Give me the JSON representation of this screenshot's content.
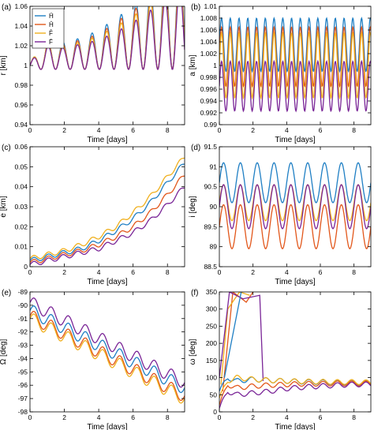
{
  "colors": {
    "H_bar": "#1f7fc4",
    "H_hat": "#e2571b",
    "F_hat": "#f0b01e",
    "F_bar": "#7a2597",
    "axis": "#000000"
  },
  "chart_data": [
    {
      "panel": "(a)",
      "type": "line",
      "xlabel": "Time [days]",
      "ylabel": "r [km]",
      "xlim": [
        0,
        9
      ],
      "ylim": [
        0.94,
        1.06
      ],
      "xticks": [
        "0",
        "2",
        "4",
        "6",
        "8"
      ],
      "yticks": [
        "0.94",
        "0.96",
        "0.98",
        "1",
        "1.02",
        "1.04",
        "1.06"
      ],
      "legend": {
        "placement": "top-left",
        "entries": [
          "H̄",
          "Ĥ",
          "F̂",
          "F̄"
        ]
      },
      "series": [
        {
          "name": "H̄",
          "color": "H_bar",
          "x": [
            0,
            1,
            2,
            3,
            4,
            5,
            6,
            7,
            8,
            8.5,
            9
          ],
          "y": [
            1.0,
            1.01,
            1.01,
            1.012,
            1.016,
            1.022,
            1.028,
            1.036,
            1.045,
            1.05,
            1.052
          ]
        },
        {
          "name": "Ĥ",
          "color": "H_hat",
          "x": [
            0,
            1,
            2,
            3,
            4,
            5,
            6,
            7,
            8,
            8.5,
            9
          ],
          "y": [
            1.0,
            1.009,
            1.009,
            1.011,
            1.014,
            1.02,
            1.026,
            1.032,
            1.04,
            1.045,
            1.048
          ]
        },
        {
          "name": "F̂",
          "color": "F_hat",
          "x": [
            0,
            1,
            2,
            3,
            4,
            5,
            6,
            7,
            8,
            8.5,
            9
          ],
          "y": [
            1.0,
            1.01,
            1.008,
            1.01,
            1.013,
            1.018,
            1.023,
            1.03,
            1.038,
            1.042,
            1.045
          ]
        },
        {
          "name": "F̄",
          "color": "F_bar",
          "x": [
            0,
            1,
            2,
            3,
            4,
            5,
            6,
            7,
            8,
            8.5,
            9
          ],
          "y": [
            1.0,
            1.008,
            1.007,
            1.009,
            1.011,
            1.015,
            1.02,
            1.026,
            1.032,
            1.036,
            1.038
          ]
        }
      ]
    },
    {
      "panel": "(b)",
      "type": "line",
      "xlabel": "Time [days]",
      "ylabel": "a [km]",
      "xlim": [
        0,
        9
      ],
      "ylim": [
        0.99,
        1.01
      ],
      "xticks": [
        "0",
        "2",
        "4",
        "6",
        "8"
      ],
      "yticks": [
        "0.99",
        "0.992",
        "0.994",
        "0.996",
        "0.998",
        "1",
        "1.002",
        "1.004",
        "1.006",
        "1.008",
        "1.01"
      ],
      "series": [
        {
          "name": "H̄",
          "color": "H_bar",
          "mean": 1.0035,
          "amplitude": 0.0045,
          "period_days": 0.52
        },
        {
          "name": "Ĥ",
          "color": "H_hat",
          "mean": 1.0015,
          "amplitude": 0.005,
          "period_days": 0.52
        },
        {
          "name": "F̂",
          "color": "F_hat",
          "mean": 1.0,
          "amplitude": 0.0055,
          "period_days": 0.52
        },
        {
          "name": "F̄",
          "color": "F_bar",
          "mean": 0.9965,
          "amplitude": 0.0042,
          "period_days": 0.52
        }
      ]
    },
    {
      "panel": "(c)",
      "type": "line",
      "xlabel": "Time [days]",
      "ylabel": "e [km]",
      "xlim": [
        0,
        9
      ],
      "ylim": [
        0,
        0.06
      ],
      "xticks": [
        "0",
        "2",
        "4",
        "6",
        "8"
      ],
      "yticks": [
        "0",
        "0.01",
        "0.02",
        "0.03",
        "0.04",
        "0.05",
        "0.06"
      ],
      "series": [
        {
          "name": "H̄",
          "color": "H_bar",
          "x": [
            0,
            1,
            2,
            3,
            4,
            5,
            6,
            7,
            8,
            9
          ],
          "y": [
            0.003,
            0.005,
            0.007,
            0.009,
            0.013,
            0.018,
            0.024,
            0.032,
            0.042,
            0.052
          ]
        },
        {
          "name": "Ĥ",
          "color": "H_hat",
          "x": [
            0,
            1,
            2,
            3,
            4,
            5,
            6,
            7,
            8,
            9
          ],
          "y": [
            0.002,
            0.004,
            0.006,
            0.008,
            0.011,
            0.015,
            0.02,
            0.027,
            0.036,
            0.046
          ]
        },
        {
          "name": "F̂",
          "color": "F_hat",
          "x": [
            0,
            1,
            2,
            3,
            4,
            5,
            6,
            7,
            8,
            9
          ],
          "y": [
            0.004,
            0.006,
            0.008,
            0.011,
            0.015,
            0.02,
            0.027,
            0.035,
            0.045,
            0.055
          ]
        },
        {
          "name": "F̄",
          "color": "F_bar",
          "x": [
            0,
            1,
            2,
            3,
            4,
            5,
            6,
            7,
            8,
            9
          ],
          "y": [
            0.001,
            0.003,
            0.005,
            0.007,
            0.009,
            0.013,
            0.017,
            0.023,
            0.031,
            0.04
          ]
        }
      ]
    },
    {
      "panel": "(d)",
      "type": "line",
      "xlabel": "Time [days]",
      "ylabel": "i [deg]",
      "xlim": [
        0,
        9
      ],
      "ylim": [
        88.5,
        91.5
      ],
      "xticks": [
        "0",
        "2",
        "4",
        "6",
        "8"
      ],
      "yticks": [
        "88.5",
        "89",
        "89.5",
        "90",
        "90.5",
        "91",
        "91.5"
      ],
      "series": [
        {
          "name": "H̄",
          "color": "H_bar",
          "mean": 90.6,
          "amplitude": 0.5,
          "period_days": 1.0
        },
        {
          "name": "Ĥ",
          "color": "H_hat",
          "mean": 89.5,
          "amplitude": 0.55,
          "period_days": 1.0
        },
        {
          "name": "F̂",
          "color": "F_hat",
          "mean": 90.1,
          "amplitude": 0.45,
          "period_days": 1.0
        },
        {
          "name": "F̄",
          "color": "F_bar",
          "mean": 90.0,
          "amplitude": 0.55,
          "period_days": 1.0
        }
      ]
    },
    {
      "panel": "(e)",
      "type": "line",
      "xlabel": "Time [days]",
      "ylabel": "Ω [deg]",
      "xlim": [
        0,
        9
      ],
      "ylim": [
        -98,
        -89
      ],
      "xticks": [
        "0",
        "2",
        "4",
        "6",
        "8"
      ],
      "yticks": [
        "-98",
        "-97",
        "-96",
        "-95",
        "-94",
        "-93",
        "-92",
        "-91",
        "-90",
        "-89"
      ],
      "series": [
        {
          "name": "H̄",
          "color": "H_bar",
          "start": -90.4,
          "end": -96.2,
          "amplitude": 0.5,
          "period_days": 1.0
        },
        {
          "name": "Ĥ",
          "color": "H_hat",
          "start": -90.8,
          "end": -96.8,
          "amplitude": 0.5,
          "period_days": 1.0
        },
        {
          "name": "F̂",
          "color": "F_hat",
          "start": -91.0,
          "end": -97.0,
          "amplitude": 0.5,
          "period_days": 1.0
        },
        {
          "name": "F̄",
          "color": "F_bar",
          "start": -89.8,
          "end": -95.8,
          "amplitude": 0.5,
          "period_days": 1.0
        }
      ]
    },
    {
      "panel": "(f)",
      "type": "line",
      "xlabel": "Time [days]",
      "ylabel": "ω [deg]",
      "xlim": [
        0,
        9
      ],
      "ylim": [
        0,
        350
      ],
      "xticks": [
        "0",
        "2",
        "4",
        "6",
        "8"
      ],
      "yticks": [
        "0",
        "50",
        "100",
        "150",
        "200",
        "250",
        "300",
        "350"
      ],
      "series": [
        {
          "name": "H̄",
          "color": "H_bar",
          "x": [
            0,
            0.5,
            1,
            2,
            3,
            4,
            5,
            6,
            7,
            8,
            9
          ],
          "y": [
            60,
            100,
            90,
            95,
            92,
            90,
            88,
            87,
            86,
            86,
            85
          ]
        },
        {
          "name": "Ĥ",
          "color": "H_hat",
          "x": [
            0,
            0.5,
            1,
            2,
            3,
            4,
            5,
            6,
            7,
            8,
            9
          ],
          "y": [
            20,
            80,
            70,
            75,
            78,
            80,
            82,
            82,
            83,
            83,
            83
          ]
        },
        {
          "name": "F̂",
          "color": "F_hat",
          "x": [
            0,
            0.5,
            1,
            2,
            3,
            4,
            5,
            6,
            7,
            8,
            9
          ],
          "y": [
            40,
            90,
            100,
            95,
            92,
            90,
            89,
            88,
            87,
            87,
            86
          ]
        },
        {
          "name": "F̄",
          "color": "F_bar",
          "x": [
            0,
            0.5,
            1,
            2,
            3,
            4,
            5,
            6,
            7,
            8,
            9
          ],
          "y": [
            10,
            60,
            50,
            55,
            60,
            68,
            72,
            75,
            78,
            80,
            80
          ]
        }
      ],
      "early_segments": [
        {
          "color": "H_hat",
          "x": [
            0.2,
            0.8,
            1.6,
            2.0
          ],
          "y": [
            60,
            350,
            320,
            350
          ]
        },
        {
          "color": "F_hat",
          "x": [
            0.1,
            0.5,
            1.2,
            1.8
          ],
          "y": [
            80,
            300,
            350,
            340
          ]
        },
        {
          "color": "F_bar",
          "x": [
            0.0,
            0.6,
            1.4,
            2.4,
            2.6
          ],
          "y": [
            100,
            350,
            330,
            340,
            90
          ]
        },
        {
          "color": "H_bar",
          "x": [
            0.3,
            0.9,
            1.3
          ],
          "y": [
            100,
            250,
            350
          ]
        }
      ]
    }
  ]
}
